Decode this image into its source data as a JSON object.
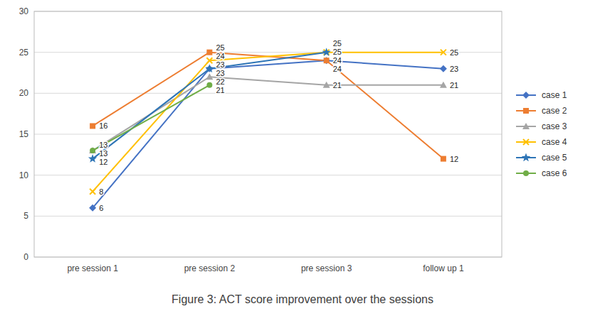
{
  "chart_data": {
    "type": "line",
    "title": "Figure 3: ACT score improvement over the sessions",
    "categories": [
      "pre session 1",
      "pre session 2",
      "pre session 3",
      "follow up 1"
    ],
    "series": [
      {
        "name": "case 1",
        "color": "#4472C4",
        "marker": "diamond",
        "line_style": "solid",
        "values": [
          6,
          23,
          24,
          23
        ]
      },
      {
        "name": "case 2",
        "color": "#ED7D31",
        "marker": "square",
        "line_style": "solid",
        "values": [
          16,
          25,
          24,
          12
        ]
      },
      {
        "name": "case 3",
        "color": "#A5A5A5",
        "marker": "triangle",
        "line_style": "solid",
        "values": [
          13,
          22,
          21,
          21
        ]
      },
      {
        "name": "case 4",
        "color": "#FFC000",
        "marker": "x",
        "line_style": "solid",
        "values": [
          8,
          24,
          25,
          25
        ]
      },
      {
        "name": "case 5",
        "color": "#2E75B6",
        "marker": "star",
        "line_style": "solid",
        "values": [
          12,
          23,
          25,
          null
        ]
      },
      {
        "name": "case 6",
        "color": "#70AD47",
        "marker": "circle",
        "line_style": "solid",
        "values": [
          13,
          21,
          null,
          null
        ]
      }
    ],
    "ylim": [
      0,
      30
    ],
    "yticks": [
      0,
      5,
      10,
      15,
      20,
      25,
      30
    ],
    "grid": true,
    "legend": "right",
    "data_labels": true
  }
}
